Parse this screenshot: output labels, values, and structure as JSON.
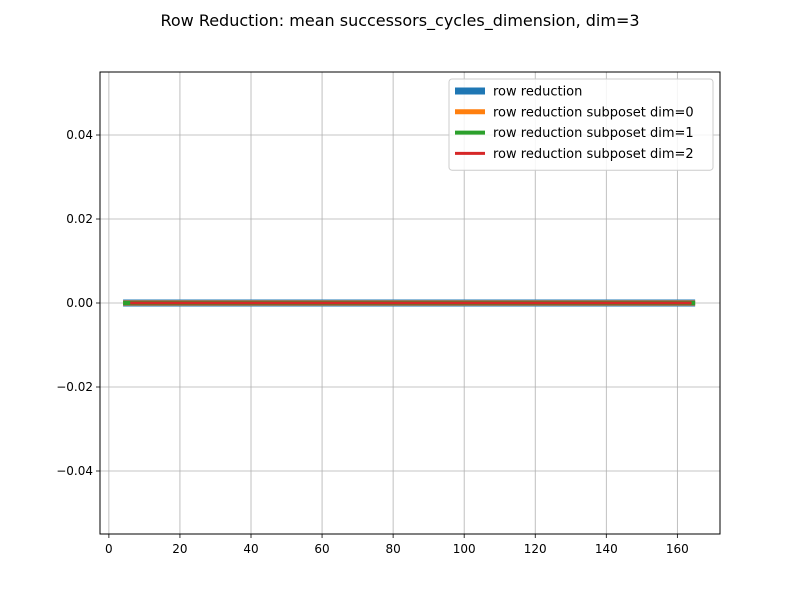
{
  "chart_data": {
    "type": "line",
    "title": "Row Reduction: mean successors_cycles_dimension, dim=3",
    "xlabel": "",
    "ylabel": "",
    "xlim": [
      -2.5,
      172
    ],
    "ylim": [
      -0.055,
      0.055
    ],
    "x_ticks": [
      0,
      20,
      40,
      60,
      80,
      100,
      120,
      140,
      160
    ],
    "y_ticks": [
      -0.04,
      -0.02,
      0.0,
      0.02,
      0.04
    ],
    "y_tick_labels": [
      "−0.04",
      "−0.02",
      "0.00",
      "0.02",
      "0.04"
    ],
    "grid": true,
    "legend_position": "top-right",
    "series": [
      {
        "name": "row reduction",
        "color": "#1f77b4",
        "x": [
          4,
          165
        ],
        "y": [
          0.0,
          0.0
        ]
      },
      {
        "name": "row reduction subposet dim=0",
        "color": "#ff7f0e",
        "x": [
          4,
          165
        ],
        "y": [
          0.0,
          0.0
        ]
      },
      {
        "name": "row reduction subposet dim=1",
        "color": "#2ca02c",
        "x": [
          4,
          165
        ],
        "y": [
          0.0,
          0.0
        ]
      },
      {
        "name": "row reduction subposet dim=2",
        "color": "#d62728",
        "x": [
          6,
          164
        ],
        "y": [
          0.0,
          0.0
        ]
      }
    ]
  }
}
